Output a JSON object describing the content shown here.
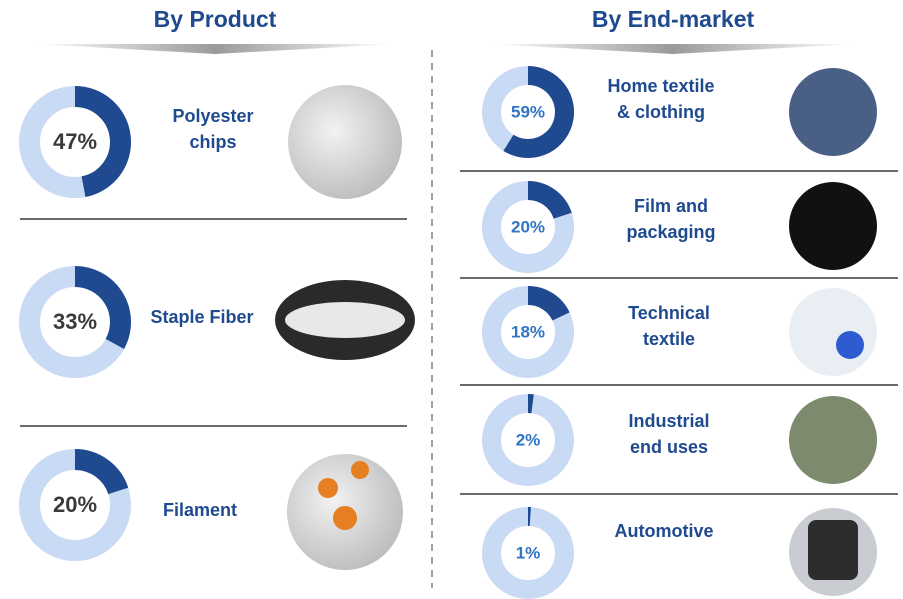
{
  "headings": [
    "By Product",
    "By End-market"
  ],
  "chart_data": [
    {
      "type": "donut",
      "title": [
        "Polyester",
        "chips"
      ],
      "values": [
        47
      ],
      "value_labels": [
        "47%"
      ],
      "color": "#1f4a8f",
      "track_color": "#c8daf4"
    },
    {
      "type": "donut",
      "title": [
        "Staple Fiber"
      ],
      "values": [
        33
      ],
      "value_labels": [
        "33%"
      ],
      "color": "#1f4a8f",
      "track_color": "#c8daf4"
    },
    {
      "type": "donut",
      "title": [
        "Filament"
      ],
      "values": [
        20
      ],
      "value_labels": [
        "20%"
      ],
      "color": "#1f4a8f",
      "track_color": "#c8daf4"
    },
    {
      "type": "donut",
      "title": [
        "Home textile",
        "& clothing"
      ],
      "values": [
        59
      ],
      "value_labels": [
        "59%"
      ],
      "color": "#1f4a8f",
      "track_color": "#c8daf4"
    },
    {
      "type": "donut",
      "title": [
        "Film and",
        "packaging"
      ],
      "values": [
        20
      ],
      "value_labels": [
        "20%"
      ],
      "color": "#1f4a8f",
      "track_color": "#c8daf4"
    },
    {
      "type": "donut",
      "title": [
        "Technical",
        "textile"
      ],
      "values": [
        18
      ],
      "value_labels": [
        "18%"
      ],
      "color": "#1f4a8f",
      "track_color": "#c8daf4"
    },
    {
      "type": "donut",
      "title": [
        "Industrial",
        "end uses"
      ],
      "values": [
        2
      ],
      "value_labels": [
        "2%"
      ],
      "color": "#1f4a8f",
      "track_color": "#c8daf4"
    },
    {
      "type": "donut",
      "title": [
        "Automotive"
      ],
      "values": [
        1
      ],
      "value_labels": [
        "1%"
      ],
      "color": "#1f4a8f",
      "track_color": "#c8daf4"
    }
  ]
}
